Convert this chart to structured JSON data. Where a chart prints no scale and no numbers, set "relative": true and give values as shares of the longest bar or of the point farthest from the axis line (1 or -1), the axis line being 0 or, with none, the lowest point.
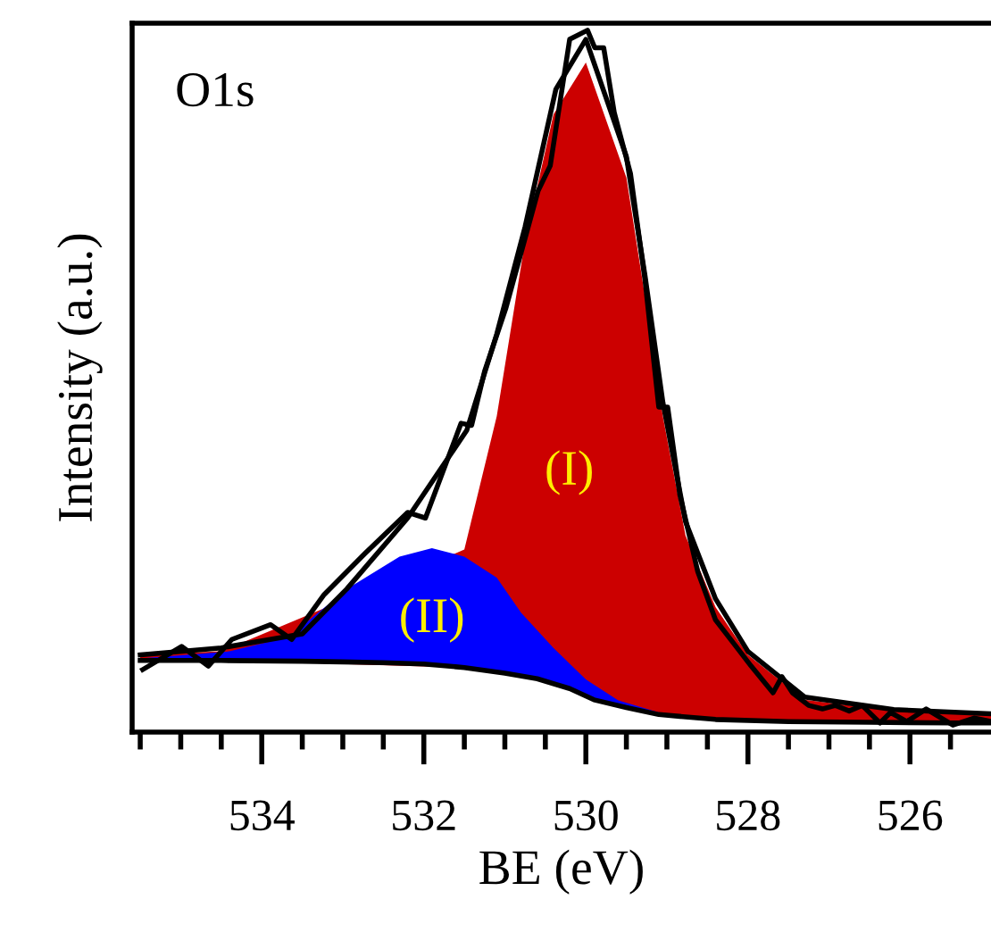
{
  "chart_data": {
    "type": "area",
    "relative": true,
    "xlabel": "BE (eV)",
    "ylabel": "Intensity (a.u.)",
    "xlim": [
      535.6,
      525
    ],
    "xticks": [
      {
        "value": 535.5,
        "label": null
      },
      {
        "value": 535,
        "label": null
      },
      {
        "value": 534.5,
        "label": null
      },
      534,
      {
        "value": 533.5,
        "label": null
      },
      {
        "value": 533,
        "label": null
      },
      {
        "value": 532.5,
        "label": null
      },
      532,
      {
        "value": 531.5,
        "label": null
      },
      {
        "value": 531,
        "label": null
      },
      {
        "value": 530.5,
        "label": null
      },
      530,
      {
        "value": 529.5,
        "label": null
      },
      {
        "value": 529,
        "label": null
      },
      {
        "value": 528.5,
        "label": null
      },
      528,
      {
        "value": 527.5,
        "label": null
      },
      {
        "value": 527,
        "label": null
      },
      {
        "value": 526.5,
        "label": null
      },
      526,
      {
        "value": 525.5,
        "label": null
      }
    ],
    "tick_labels": "x",
    "series": [
      {
        "color": "#cc0000",
        "x": [
          535.5,
          534.5,
          533.5,
          533,
          532.5,
          532,
          531.5,
          531.1,
          530.75,
          530.4,
          530,
          529.5,
          529.27,
          529.05,
          528.77,
          528.4,
          528,
          527.3,
          526.2,
          525
        ],
        "values": [
          0.11,
          0.115,
          null,
          null,
          null,
          null,
          0.26,
          0.45,
          0.7,
          0.88,
          0.954,
          0.79,
          0.62,
          0.45,
          0.28,
          0.178,
          0.11,
          0.046,
          0.03,
          0.025
        ]
      },
      {
        "color": "#0000ff",
        "x": [
          535.5,
          534.4,
          533.67,
          532.95,
          532.3,
          531.9,
          531.5,
          531.1,
          530.8,
          530.4,
          530,
          529.6,
          529.1,
          528.5
        ],
        "values": [
          0.105,
          0.115,
          0.135,
          0.204,
          0.25,
          0.262,
          0.25,
          0.22,
          0.17,
          0.12,
          0.075,
          0.045,
          0.028,
          0.018
        ]
      },
      {
        "type": "line",
        "color": "#000000",
        "x": [
          535.5,
          534.5,
          533.5,
          533,
          532.5,
          532,
          531.5,
          531,
          530.6,
          530.2,
          529.9,
          529.5,
          529.1,
          528.4,
          527.5,
          526.5,
          525.5,
          525
        ],
        "values": [
          0.102,
          0.102,
          0.101,
          0.1,
          0.099,
          0.097,
          0.092,
          0.084,
          0.076,
          0.062,
          0.046,
          0.035,
          0.025,
          0.018,
          0.015,
          0.014,
          0.013,
          0.013
        ]
      },
      {
        "type": "line",
        "color": "#000000",
        "x": [
          535.5,
          534.5,
          533.5,
          532.95,
          532.2,
          531.47,
          531.1,
          530.75,
          530.37,
          530,
          529.5,
          529.27,
          529.05,
          528.77,
          528.4,
          528,
          527.3,
          526.2,
          525
        ],
        "values": [
          0.11,
          0.12,
          0.14,
          0.204,
          0.305,
          0.43,
          0.567,
          0.72,
          0.916,
          0.987,
          0.82,
          0.65,
          0.47,
          0.3,
          0.19,
          0.115,
          0.05,
          0.032,
          0.026
        ]
      },
      {
        "type": "line",
        "color": "#000000",
        "x": [
          535.47,
          534.99,
          534.66,
          534.37,
          533.89,
          533.63,
          533.23,
          532.73,
          532.2,
          531.98,
          531.54,
          531.41,
          531.25,
          530.99,
          530.59,
          530.44,
          530.2,
          529.98,
          529.89,
          529.78,
          529.65,
          529.45,
          529.27,
          529.1,
          528.99,
          528.84,
          528.62,
          528.4,
          528.18,
          527.96,
          527.69,
          527.58,
          527.45,
          527.25,
          527.08,
          526.92,
          526.75,
          526.59,
          526.37,
          526.24,
          526.04,
          525.8,
          525.47,
          525.21,
          525.0
        ],
        "values": [
          0.089,
          0.122,
          0.094,
          0.132,
          0.153,
          0.132,
          0.196,
          0.254,
          0.313,
          0.305,
          0.44,
          0.437,
          0.514,
          0.603,
          0.771,
          0.807,
          0.987,
          1.0,
          0.975,
          0.975,
          0.883,
          0.796,
          0.644,
          0.463,
          0.463,
          0.338,
          0.229,
          0.16,
          0.127,
          0.094,
          0.056,
          0.079,
          0.056,
          0.038,
          0.033,
          0.038,
          0.03,
          0.038,
          0.013,
          0.028,
          0.015,
          0.033,
          0.01,
          0.02,
          0.015
        ]
      }
    ],
    "annotations": [
      "O1s",
      "(I)",
      "(II)"
    ]
  }
}
